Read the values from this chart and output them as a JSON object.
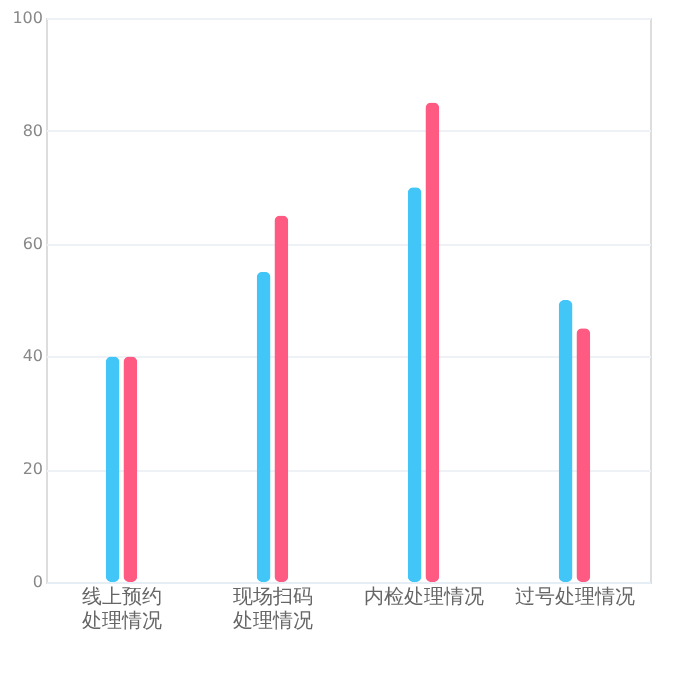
{
  "chart_data": {
    "type": "bar",
    "categories": [
      "线上预约处理情况",
      "现场扫码处理情况",
      "内检处理情况",
      "过号处理情况"
    ],
    "series": [
      {
        "color": "#42c6f7",
        "values": [
          40,
          55,
          70,
          50
        ]
      },
      {
        "color": "#ff5a82",
        "values": [
          40,
          65,
          85,
          45
        ]
      }
    ],
    "ylim": [
      0,
      100
    ],
    "yticks": [
      0,
      20,
      40,
      60,
      80,
      100
    ],
    "grid": "y"
  }
}
